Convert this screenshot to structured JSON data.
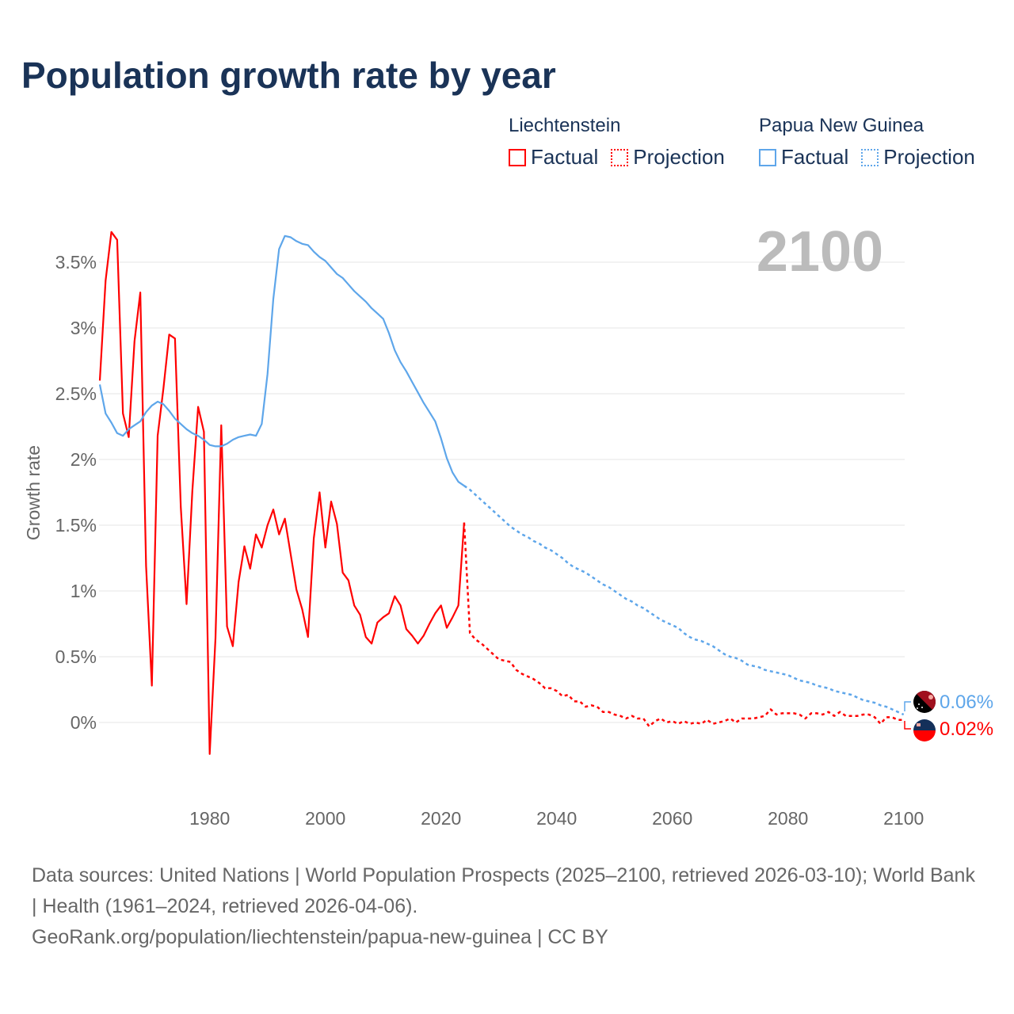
{
  "title": "Population growth rate by year",
  "legend": {
    "groups": [
      {
        "name": "Liechtenstein",
        "color": "#ff0000",
        "factual_label": "Factual",
        "projection_label": "Projection"
      },
      {
        "name": "Papua New Guinea",
        "color": "#5ea6ea",
        "factual_label": "Factual",
        "projection_label": "Projection"
      }
    ]
  },
  "year_overlay": "2100",
  "end_labels": {
    "papua_new_guinea": "0.06%",
    "liechtenstein": "0.02%"
  },
  "footer": {
    "sources": "Data sources: United Nations | World Population Prospects (2025–2100, retrieved 2026-03-10); World Bank | Health (1961–2024, retrieved 2026-04-06).",
    "link": "GeoRank.org/population/liechtenstein/papua-new-guinea | CC BY"
  },
  "chart_data": {
    "type": "line",
    "title": "Population growth rate by year",
    "xlabel": "",
    "ylabel": "Growth rate",
    "xlim": [
      1961,
      2100
    ],
    "ylim": [
      -0.3,
      3.8
    ],
    "x_ticks": [
      1980,
      2000,
      2020,
      2040,
      2060,
      2080,
      2100
    ],
    "y_ticks": [
      0,
      0.5,
      1,
      1.5,
      2,
      2.5,
      3,
      3.5
    ],
    "y_tick_labels": [
      "0%",
      "0.5%",
      "1%",
      "1.5%",
      "2%",
      "2.5%",
      "3%",
      "3.5%"
    ],
    "grid": true,
    "legend_position": "top-right",
    "series": [
      {
        "name": "Liechtenstein",
        "kind": "factual",
        "color": "#ff0000",
        "start_year": 1961,
        "values": [
          2.6,
          3.36,
          3.73,
          3.67,
          2.35,
          2.17,
          2.9,
          3.27,
          1.19,
          0.28,
          2.18,
          2.54,
          2.95,
          2.92,
          1.64,
          0.9,
          1.76,
          2.4,
          2.21,
          -0.24,
          0.64,
          2.26,
          0.73,
          0.58,
          1.07,
          1.34,
          1.17,
          1.43,
          1.33,
          1.5,
          1.62,
          1.43,
          1.55,
          1.28,
          1.01,
          0.86,
          0.65,
          1.4,
          1.75,
          1.33,
          1.68,
          1.51,
          1.14,
          1.08,
          0.89,
          0.82,
          0.65,
          0.6,
          0.76,
          0.8,
          0.83,
          0.96,
          0.89,
          0.71,
          0.66,
          0.6,
          0.66,
          0.75,
          0.83,
          0.89,
          0.72,
          0.8,
          0.89,
          1.52
        ]
      },
      {
        "name": "Liechtenstein",
        "kind": "projection",
        "color": "#ff0000",
        "start_year": 2025,
        "values": [
          0.68,
          0.63,
          0.6,
          0.56,
          0.52,
          0.48,
          0.47,
          0.46,
          0.4,
          0.37,
          0.35,
          0.33,
          0.3,
          0.26,
          0.26,
          0.24,
          0.2,
          0.21,
          0.16,
          0.16,
          0.12,
          0.13,
          0.12,
          0.08,
          0.08,
          0.06,
          0.05,
          0.03,
          0.05,
          0.03,
          0.03,
          -0.03,
          0.01,
          0.03,
          0.0,
          0.01,
          -0.01,
          0.01,
          -0.01,
          0.0,
          -0.01,
          0.02,
          -0.01,
          0.0,
          0.01,
          0.03,
          0.0,
          0.03,
          0.03,
          0.03,
          0.04,
          0.05,
          0.1,
          0.06,
          0.07,
          0.07,
          0.07,
          0.06,
          0.03,
          0.07,
          0.07,
          0.06,
          0.08,
          0.05,
          0.08,
          0.05,
          0.05,
          0.05,
          0.06,
          0.06,
          0.04,
          -0.01,
          0.04,
          0.04,
          0.02,
          0.02
        ]
      },
      {
        "name": "Papua New Guinea",
        "kind": "factual",
        "color": "#5ea6ea",
        "start_year": 1961,
        "values": [
          2.57,
          2.35,
          2.28,
          2.2,
          2.18,
          2.23,
          2.26,
          2.29,
          2.36,
          2.41,
          2.44,
          2.42,
          2.37,
          2.31,
          2.27,
          2.23,
          2.2,
          2.18,
          2.15,
          2.11,
          2.1,
          2.1,
          2.12,
          2.15,
          2.17,
          2.18,
          2.19,
          2.18,
          2.27,
          2.65,
          3.22,
          3.6,
          3.7,
          3.69,
          3.66,
          3.64,
          3.63,
          3.58,
          3.54,
          3.51,
          3.46,
          3.41,
          3.38,
          3.33,
          3.28,
          3.24,
          3.2,
          3.15,
          3.11,
          3.07,
          2.96,
          2.83,
          2.74,
          2.67,
          2.59,
          2.51,
          2.43,
          2.36,
          2.29,
          2.16,
          2.01,
          1.9,
          1.83,
          1.8
        ]
      },
      {
        "name": "Papua New Guinea",
        "kind": "projection",
        "color": "#5ea6ea",
        "start_year": 2025,
        "values": [
          1.77,
          1.73,
          1.69,
          1.65,
          1.61,
          1.57,
          1.53,
          1.49,
          1.46,
          1.43,
          1.41,
          1.38,
          1.36,
          1.33,
          1.31,
          1.28,
          1.25,
          1.21,
          1.18,
          1.16,
          1.14,
          1.11,
          1.08,
          1.05,
          1.03,
          1.0,
          0.97,
          0.94,
          0.92,
          0.89,
          0.87,
          0.84,
          0.81,
          0.78,
          0.76,
          0.74,
          0.72,
          0.68,
          0.65,
          0.63,
          0.62,
          0.6,
          0.58,
          0.55,
          0.52,
          0.5,
          0.49,
          0.47,
          0.44,
          0.43,
          0.42,
          0.4,
          0.39,
          0.38,
          0.37,
          0.36,
          0.34,
          0.32,
          0.31,
          0.3,
          0.28,
          0.27,
          0.26,
          0.24,
          0.23,
          0.22,
          0.21,
          0.19,
          0.17,
          0.16,
          0.15,
          0.13,
          0.12,
          0.1,
          0.08,
          0.06
        ]
      }
    ]
  }
}
